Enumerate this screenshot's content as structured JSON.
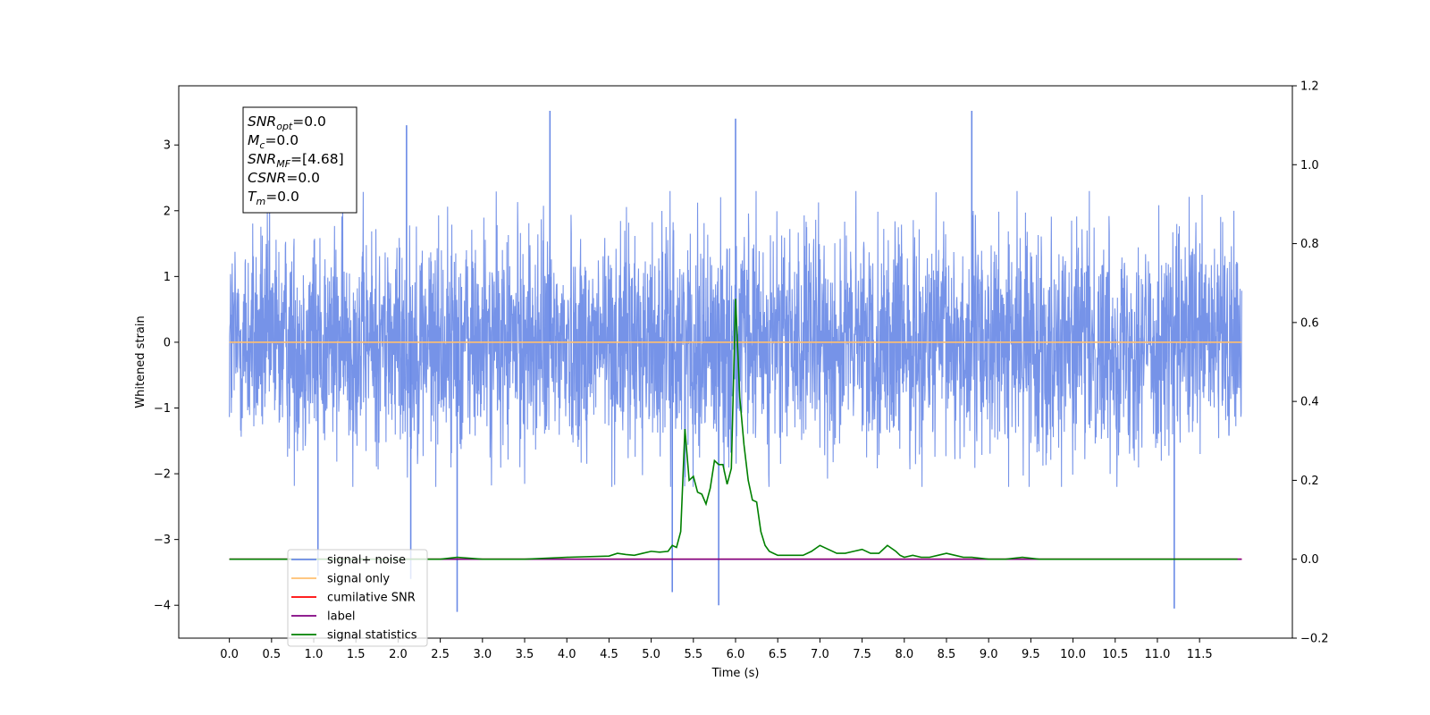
{
  "chart_data": {
    "type": "line",
    "xlabel": "Time (s)",
    "ylabel": "Whitened strain",
    "xlim": [
      -0.6,
      12.6
    ],
    "ylim": [
      -4.5,
      3.9
    ],
    "y2lim": [
      -0.2,
      1.2
    ],
    "x_ticks": [
      "0.0",
      "0.5",
      "1.0",
      "1.5",
      "2.0",
      "2.5",
      "3.0",
      "3.5",
      "4.0",
      "4.5",
      "5.0",
      "5.5",
      "6.0",
      "6.5",
      "7.0",
      "7.5",
      "8.0",
      "8.5",
      "9.0",
      "9.5",
      "10.0",
      "10.5",
      "11.0",
      "11.5"
    ],
    "y_ticks": [
      3,
      2,
      1,
      0,
      -1,
      -2,
      -3,
      -4
    ],
    "y_tick_labels": [
      "3",
      "2",
      "1",
      "0",
      "−1",
      "−2",
      "−3",
      "−4"
    ],
    "y2_ticks": [
      "1.2",
      "1.0",
      "0.8",
      "0.6",
      "0.4",
      "0.2",
      "0.0",
      "−0.2"
    ],
    "annotation": [
      {
        "main": "SNR",
        "sub": "opt",
        "value": "=0.0"
      },
      {
        "main": "M",
        "sub": "c",
        "value": "=0.0"
      },
      {
        "main": "SNR",
        "sub": "MF",
        "value": "=[4.68]"
      },
      {
        "main": "CSNR",
        "sub": "",
        "value": "=0.0"
      },
      {
        "main": "T",
        "sub": "m",
        "value": "=0.0"
      }
    ],
    "series": [
      {
        "name": "signal+ noise",
        "color": "#6a8ae6",
        "axis": "left",
        "style": "dense-noise",
        "x_range": [
          0.0,
          12.0
        ],
        "range": [
          -2.2,
          2.3
        ],
        "spikes": [
          [
            3.8,
            3.52
          ],
          [
            8.8,
            3.52
          ],
          [
            2.7,
            -4.1
          ],
          [
            5.25,
            -3.8
          ],
          [
            5.8,
            -4.0
          ],
          [
            11.2,
            -4.05
          ],
          [
            1.05,
            -3.55
          ],
          [
            2.15,
            -3.6
          ],
          [
            2.1,
            3.3
          ],
          [
            6.0,
            3.4
          ]
        ]
      },
      {
        "name": "signal only",
        "color": "#ffbf70",
        "axis": "left",
        "x": [
          0.0,
          12.0
        ],
        "values": [
          0.0,
          0.0
        ]
      },
      {
        "name": "cumilative SNR",
        "color": "#ff0000",
        "axis": "right",
        "x": [
          0.0,
          12.0
        ],
        "values": [
          0.0,
          0.0
        ]
      },
      {
        "name": "label",
        "color": "#800080",
        "axis": "right",
        "x": [
          0.0,
          12.0
        ],
        "values": [
          0.0,
          0.0
        ]
      },
      {
        "name": "signal statistics",
        "color": "#008000",
        "axis": "right",
        "x": [
          0.0,
          0.5,
          1.0,
          1.5,
          2.0,
          2.5,
          2.7,
          3.0,
          3.5,
          4.0,
          4.5,
          4.6,
          4.7,
          4.8,
          4.9,
          5.0,
          5.1,
          5.2,
          5.25,
          5.3,
          5.35,
          5.4,
          5.45,
          5.5,
          5.55,
          5.6,
          5.65,
          5.7,
          5.75,
          5.8,
          5.85,
          5.9,
          5.95,
          6.0,
          6.05,
          6.1,
          6.15,
          6.2,
          6.25,
          6.3,
          6.35,
          6.4,
          6.45,
          6.5,
          6.55,
          6.6,
          6.7,
          6.8,
          6.9,
          7.0,
          7.1,
          7.2,
          7.3,
          7.4,
          7.5,
          7.6,
          7.7,
          7.8,
          7.9,
          7.95,
          8.0,
          8.1,
          8.2,
          8.3,
          8.4,
          8.5,
          8.6,
          8.7,
          8.8,
          9.0,
          9.2,
          9.4,
          9.6,
          10.0,
          10.5,
          11.0,
          11.5,
          11.95
        ],
        "values": [
          0.0,
          0.0,
          0.0,
          0.0,
          0.0,
          0.0,
          0.005,
          0.0,
          0.0,
          0.005,
          0.008,
          0.015,
          0.012,
          0.01,
          0.015,
          0.02,
          0.018,
          0.02,
          0.035,
          0.03,
          0.07,
          0.33,
          0.2,
          0.21,
          0.17,
          0.165,
          0.14,
          0.18,
          0.25,
          0.24,
          0.24,
          0.19,
          0.23,
          0.66,
          0.41,
          0.29,
          0.2,
          0.15,
          0.145,
          0.07,
          0.035,
          0.02,
          0.015,
          0.01,
          0.01,
          0.01,
          0.01,
          0.01,
          0.02,
          0.035,
          0.025,
          0.015,
          0.015,
          0.02,
          0.025,
          0.015,
          0.015,
          0.035,
          0.02,
          0.01,
          0.005,
          0.01,
          0.005,
          0.005,
          0.01,
          0.015,
          0.01,
          0.005,
          0.005,
          0.0,
          0.0,
          0.005,
          0.0,
          0.0,
          0.0,
          0.0,
          0.0,
          0.0
        ]
      }
    ],
    "legend_position": "lower-left",
    "grid": false
  }
}
